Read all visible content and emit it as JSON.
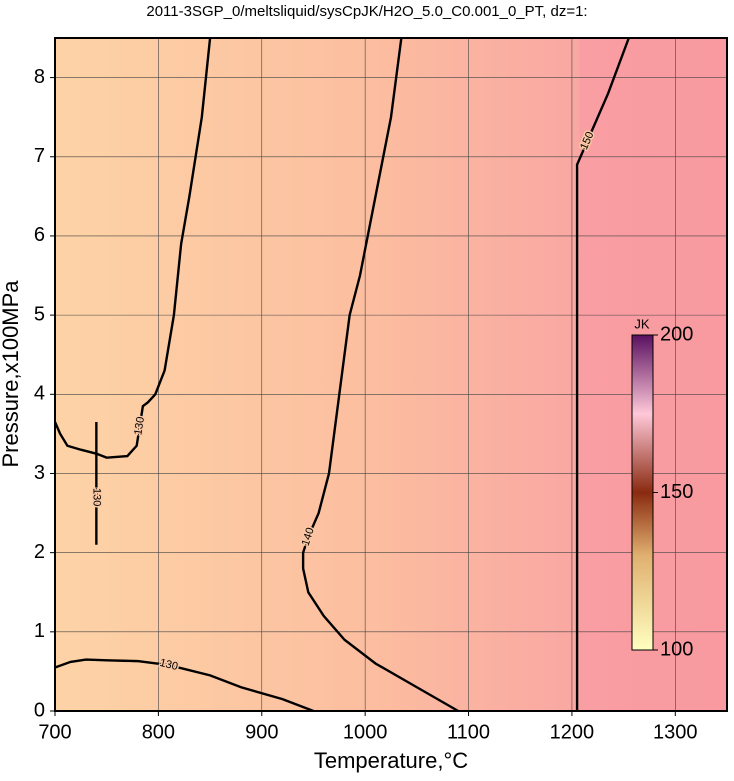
{
  "chart_data": {
    "type": "contour",
    "title": "2011-3SGP_0/meltsliquid/sysCpJK/H2O_5.0_C0.001_0_PT, dz=1:",
    "x_label": "Temperature,°C",
    "y_label": "Pressure,x100MPa",
    "xlim": [
      700,
      1350
    ],
    "ylim": [
      0,
      8.5
    ],
    "xticks": [
      700,
      800,
      900,
      1000,
      1100,
      1200,
      1300
    ],
    "yticks": [
      0,
      1,
      2,
      3,
      4,
      5,
      6,
      7,
      8
    ],
    "grid": true,
    "contours": [
      {
        "level": 130,
        "x": [
          850,
          842,
          830,
          822,
          815,
          806,
          797,
          790,
          785,
          782,
          779,
          770,
          750,
          740,
          725,
          712,
          705,
          700
        ],
        "y": [
          8.5,
          7.5,
          6.5,
          5.9,
          5.0,
          4.3,
          4.0,
          3.9,
          3.85,
          3.6,
          3.35,
          3.22,
          3.2,
          3.25,
          3.3,
          3.35,
          3.5,
          3.65
        ]
      },
      {
        "level": 130,
        "x": [
          740,
          740,
          740,
          740
        ],
        "y": [
          3.65,
          3.3,
          2.7,
          2.1
        ]
      },
      {
        "level": 130,
        "x": [
          700,
          715,
          730,
          750,
          780,
          810,
          850,
          880,
          920,
          950
        ],
        "y": [
          0.55,
          0.62,
          0.65,
          0.64,
          0.63,
          0.58,
          0.45,
          0.3,
          0.15,
          0
        ]
      },
      {
        "level": 140,
        "x": [
          1035,
          1025,
          1010,
          995,
          985,
          975,
          965,
          955,
          945,
          940,
          940,
          945,
          960,
          980,
          1010,
          1050,
          1090
        ],
        "y": [
          8.5,
          7.5,
          6.5,
          5.5,
          5.0,
          4.0,
          3.0,
          2.5,
          2.2,
          2.0,
          1.8,
          1.5,
          1.2,
          0.9,
          0.6,
          0.3,
          0
        ]
      },
      {
        "level": 150,
        "x": [
          1205,
          1205,
          1205,
          1215,
          1235,
          1255
        ],
        "y": [
          0,
          3.5,
          6.9,
          7.2,
          7.8,
          8.5
        ]
      }
    ],
    "colorbar": {
      "label": "JK",
      "lim": [
        100,
        200
      ],
      "ticks": [
        100,
        150,
        200
      ]
    }
  }
}
